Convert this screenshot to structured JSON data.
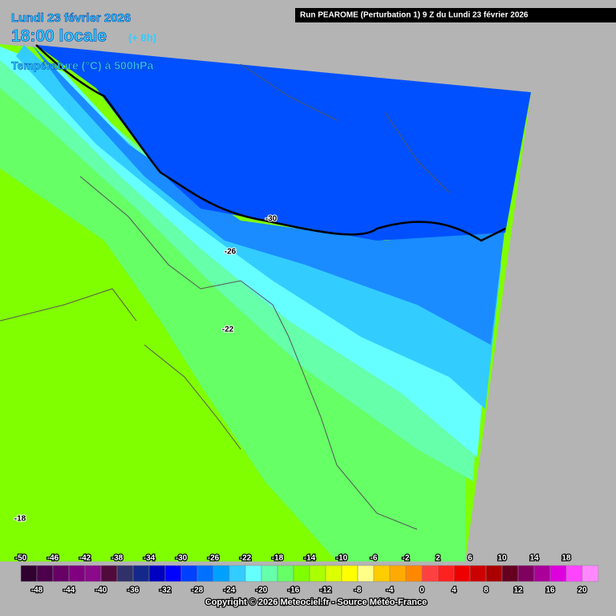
{
  "header": {
    "date": "Lundi 23 février 2026",
    "time": "18:00 locale",
    "offset": "(+ 8h)",
    "field": "Température (°C) à 500hPa",
    "run": "Run PEAROME (Perturbation 1) 9 Z du Lundi 23 février 2026"
  },
  "contour_labels": [
    -30,
    -26,
    -22,
    -18
  ],
  "colorbar": {
    "labels": [
      -50,
      -48,
      -46,
      -44,
      -42,
      -40,
      -38,
      -36,
      -34,
      -32,
      -30,
      -28,
      -26,
      -24,
      -22,
      -20,
      -18,
      -16,
      -14,
      -12,
      -10,
      -8,
      -6,
      -4,
      -2,
      0,
      2,
      4,
      6,
      8,
      10,
      12,
      14,
      16,
      18,
      20
    ],
    "colors": [
      "#300030",
      "#4c004c",
      "#660066",
      "#800080",
      "#8a0a8a",
      "#500a3c",
      "#30306a",
      "#14288c",
      "#0000c0",
      "#0000ff",
      "#0040ff",
      "#0070ff",
      "#00a0ff",
      "#33ccff",
      "#66ffff",
      "#66ffaa",
      "#66ff66",
      "#80ff00",
      "#aaff00",
      "#ddff00",
      "#ffff00",
      "#ffff88",
      "#ffcc00",
      "#ffaa00",
      "#ff8800",
      "#ff4040",
      "#ff2020",
      "#ee0000",
      "#cc0000",
      "#aa0000",
      "#660020",
      "#800060",
      "#aa0099",
      "#dd00dd",
      "#ff44ff",
      "#ff88ff"
    ]
  },
  "footer": {
    "copyright": "Copyright © 2026 Meteociel.fr - Source Météo-France"
  }
}
